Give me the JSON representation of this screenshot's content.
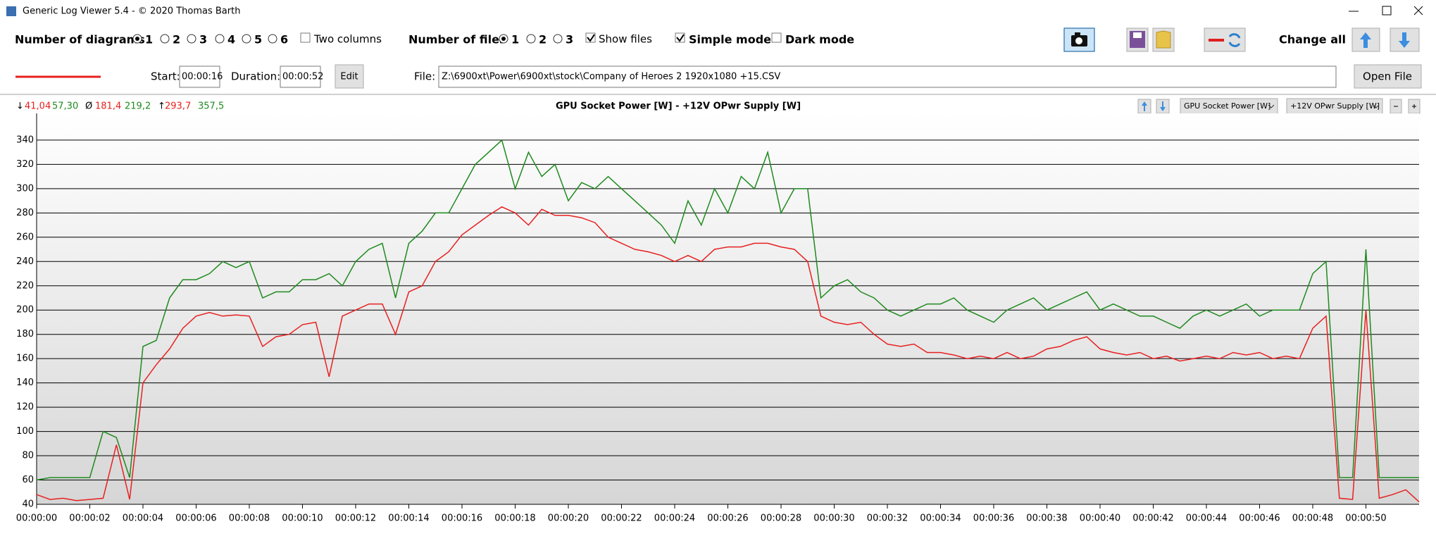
{
  "window": {
    "title": "Generic Log Viewer 5.4 - © 2020 Thomas Barth"
  },
  "toolbar": {
    "diagrams_label": "Number of diagrams",
    "diagram_options": [
      "1",
      "2",
      "3",
      "4",
      "5",
      "6"
    ],
    "two_columns": "Two columns",
    "files_label": "Number of files",
    "file_options": [
      "1",
      "2",
      "3"
    ],
    "show_files": "Show files",
    "simple_mode": "Simple mode",
    "dark_mode": "Dark mode",
    "change_all": "Change all"
  },
  "file_bar": {
    "start_label": "Start:",
    "start": "00:00:16",
    "duration_label": "Duration:",
    "duration": "00:00:52",
    "edit": "Edit",
    "file_label": "File:",
    "file_path": "Z:\\6900xt\\Power\\6900xt\\stock\\Company of Heroes 2 1920x1080 +15.CSV",
    "open_file": "Open File"
  },
  "stats": {
    "min_symbol": "↓",
    "min": [
      {
        "value": 41.04,
        "label": "41,04"
      },
      {
        "value": 57.3,
        "label": "57,30"
      }
    ],
    "avg_symbol": "Ø",
    "avg": [
      {
        "value": 181.4,
        "label": "181,4"
      },
      {
        "value": 219.2,
        "label": "219,2"
      }
    ],
    "max_symbol": "↑",
    "max": [
      {
        "value": 293.7,
        "label": "293,7"
      },
      {
        "value": 357.5,
        "label": "357,5"
      }
    ]
  },
  "chart_data": {
    "type": "line",
    "title": "GPU Socket Power [W]  -  +12V OPwr Supply [W]",
    "x": [
      0,
      0.5,
      1,
      1.5,
      2,
      2.5,
      3,
      3.5,
      4,
      4.5,
      5,
      5.5,
      6,
      6.5,
      7,
      7.5,
      8,
      8.5,
      9,
      9.5,
      10,
      10.5,
      11,
      11.5,
      12,
      12.5,
      13,
      13.5,
      14,
      14.5,
      15,
      15.5,
      16,
      16.5,
      17,
      17.5,
      18,
      18.5,
      19,
      19.5,
      20,
      20.5,
      21,
      21.5,
      22,
      22.5,
      23,
      23.5,
      24,
      24.5,
      25,
      25.5,
      26,
      26.5,
      27,
      27.5,
      28,
      28.5,
      29,
      29.5,
      30,
      30.5,
      31,
      31.5,
      32,
      32.5,
      33,
      33.5,
      34,
      34.5,
      35,
      35.5,
      36,
      36.5,
      37,
      37.5,
      38,
      38.5,
      39,
      39.5,
      40,
      40.5,
      41,
      41.5,
      42,
      42.5,
      43,
      43.5,
      44,
      44.5,
      45,
      45.5,
      46,
      46.5,
      47,
      47.5,
      48,
      48.5,
      49,
      49.5,
      50,
      50.5,
      51,
      51.5,
      52
    ],
    "series": [
      {
        "name": "GPU Socket Power [W]",
        "color": "#e82020",
        "values": [
          48,
          44,
          45,
          43,
          44,
          45,
          89,
          44,
          140,
          155,
          168,
          185,
          195,
          198,
          195,
          196,
          195,
          170,
          178,
          180,
          188,
          190,
          145,
          195,
          200,
          205,
          205,
          180,
          215,
          220,
          240,
          248,
          262,
          270,
          278,
          285,
          280,
          270,
          283,
          278,
          278,
          276,
          272,
          260,
          255,
          250,
          248,
          245,
          240,
          245,
          240,
          250,
          252,
          252,
          255,
          255,
          252,
          250,
          240,
          195,
          190,
          188,
          190,
          180,
          172,
          170,
          172,
          165,
          165,
          163,
          160,
          162,
          160,
          165,
          160,
          162,
          168,
          170,
          175,
          178,
          168,
          165,
          163,
          165,
          160,
          162,
          158,
          160,
          162,
          160,
          165,
          163,
          165,
          160,
          162,
          160,
          185,
          195,
          45,
          44,
          200,
          45,
          48,
          52,
          42
        ]
      },
      {
        "name": "+12V OPwr Supply [W]",
        "color": "#1e8a1e",
        "values": [
          60,
          62,
          62,
          62,
          62,
          100,
          95,
          62,
          170,
          175,
          210,
          225,
          225,
          230,
          240,
          235,
          240,
          210,
          215,
          215,
          225,
          225,
          230,
          220,
          240,
          250,
          255,
          210,
          255,
          265,
          280,
          280,
          300,
          320,
          330,
          340,
          300,
          330,
          310,
          320,
          290,
          305,
          300,
          310,
          300,
          290,
          280,
          270,
          255,
          290,
          270,
          300,
          280,
          310,
          300,
          330,
          280,
          300,
          300,
          210,
          220,
          225,
          215,
          210,
          200,
          195,
          200,
          205,
          205,
          210,
          200,
          195,
          190,
          200,
          205,
          210,
          200,
          205,
          210,
          215,
          200,
          205,
          200,
          195,
          195,
          190,
          185,
          195,
          200,
          195,
          200,
          205,
          195,
          200,
          200,
          200,
          230,
          240,
          62,
          62,
          250,
          62,
          62,
          62,
          62
        ]
      }
    ],
    "xlim": [
      0,
      52
    ],
    "ylim": [
      40,
      362
    ],
    "yticks": [
      40,
      60,
      80,
      100,
      120,
      140,
      160,
      180,
      200,
      220,
      240,
      260,
      280,
      300,
      320,
      340
    ],
    "xticks": [
      {
        "value": 0,
        "label": "00:00:00"
      },
      {
        "value": 2,
        "label": "00:00:02"
      },
      {
        "value": 4,
        "label": "00:00:04"
      },
      {
        "value": 6,
        "label": "00:00:06"
      },
      {
        "value": 8,
        "label": "00:00:08"
      },
      {
        "value": 10,
        "label": "00:00:10"
      },
      {
        "value": 12,
        "label": "00:00:12"
      },
      {
        "value": 14,
        "label": "00:00:14"
      },
      {
        "value": 16,
        "label": "00:00:16"
      },
      {
        "value": 18,
        "label": "00:00:18"
      },
      {
        "value": 20,
        "label": "00:00:20"
      },
      {
        "value": 22,
        "label": "00:00:22"
      },
      {
        "value": 24,
        "label": "00:00:24"
      },
      {
        "value": 26,
        "label": "00:00:26"
      },
      {
        "value": 28,
        "label": "00:00:28"
      },
      {
        "value": 30,
        "label": "00:00:30"
      },
      {
        "value": 32,
        "label": "00:00:32"
      },
      {
        "value": 34,
        "label": "00:00:34"
      },
      {
        "value": 36,
        "label": "00:00:36"
      },
      {
        "value": 38,
        "label": "00:00:38"
      },
      {
        "value": 40,
        "label": "00:00:40"
      },
      {
        "value": 42,
        "label": "00:00:42"
      },
      {
        "value": 44,
        "label": "00:00:44"
      },
      {
        "value": 46,
        "label": "00:00:46"
      },
      {
        "value": 48,
        "label": "00:00:48"
      },
      {
        "value": 50,
        "label": "00:00:50"
      }
    ],
    "grid": true
  }
}
